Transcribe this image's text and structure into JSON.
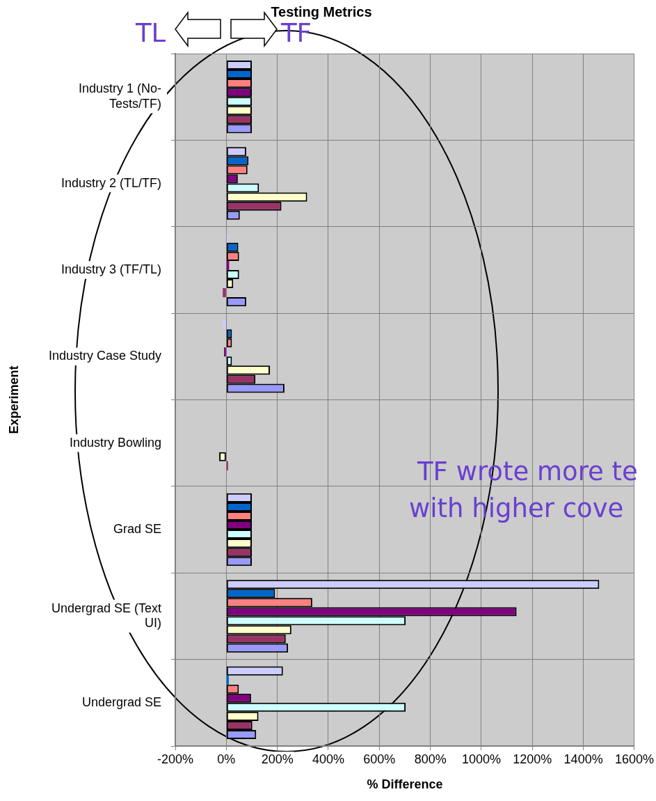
{
  "chart_data": {
    "type": "bar",
    "orientation": "horizontal",
    "title": "Testing Metrics",
    "xlabel": "% Difference",
    "ylabel": "Experiment",
    "categories": [
      "Industry 1 (No-Tests/TF)",
      "Industry 2 (TL/TF)",
      "Industry 3 (TF/TL)",
      "Industry Case Study",
      "Industry Bowling",
      "Grad SE",
      "Undergrad SE (Text UI)",
      "Undergrad SE"
    ],
    "series": [
      {
        "color": "#ccccff",
        "values": [
          100,
          78,
          7,
          -14,
          0,
          100,
          1462,
          222
        ]
      },
      {
        "color": "#0066cc",
        "values": [
          100,
          87,
          47,
          22,
          0,
          100,
          191,
          10
        ]
      },
      {
        "color": "#ff8080",
        "values": [
          100,
          83,
          50,
          22,
          0,
          100,
          337,
          49
        ]
      },
      {
        "color": "#800080",
        "values": [
          100,
          45,
          11,
          -9,
          0,
          100,
          1138,
          97
        ]
      },
      {
        "color": "#ccffff",
        "values": [
          100,
          128,
          50,
          22,
          0,
          100,
          703,
          703
        ]
      },
      {
        "color": "#ffffcc",
        "values": [
          100,
          317,
          27,
          171,
          -28,
          100,
          255,
          126
        ]
      },
      {
        "color": "#993366",
        "values": [
          100,
          216,
          -14,
          114,
          7,
          100,
          233,
          102
        ]
      },
      {
        "color": "#9999ff",
        "values": [
          100,
          53,
          78,
          228,
          0,
          100,
          242,
          117
        ]
      }
    ],
    "xlim": [
      -200,
      1600
    ],
    "xticks": [
      {
        "value": -200,
        "label": "-200%"
      },
      {
        "value": 0,
        "label": "0%"
      },
      {
        "value": 200,
        "label": "200%"
      },
      {
        "value": 400,
        "label": "400%"
      },
      {
        "value": 600,
        "label": "600%"
      },
      {
        "value": 800,
        "label": "800%"
      },
      {
        "value": 1000,
        "label": "1000%"
      },
      {
        "value": 1200,
        "label": "1200%"
      },
      {
        "value": 1400,
        "label": "1400%"
      },
      {
        "value": 1600,
        "label": "1600%"
      }
    ],
    "grid": true,
    "legend": false,
    "annotations": [
      "TL",
      "TF",
      "TF wrote more te\nwith higher cove"
    ]
  }
}
